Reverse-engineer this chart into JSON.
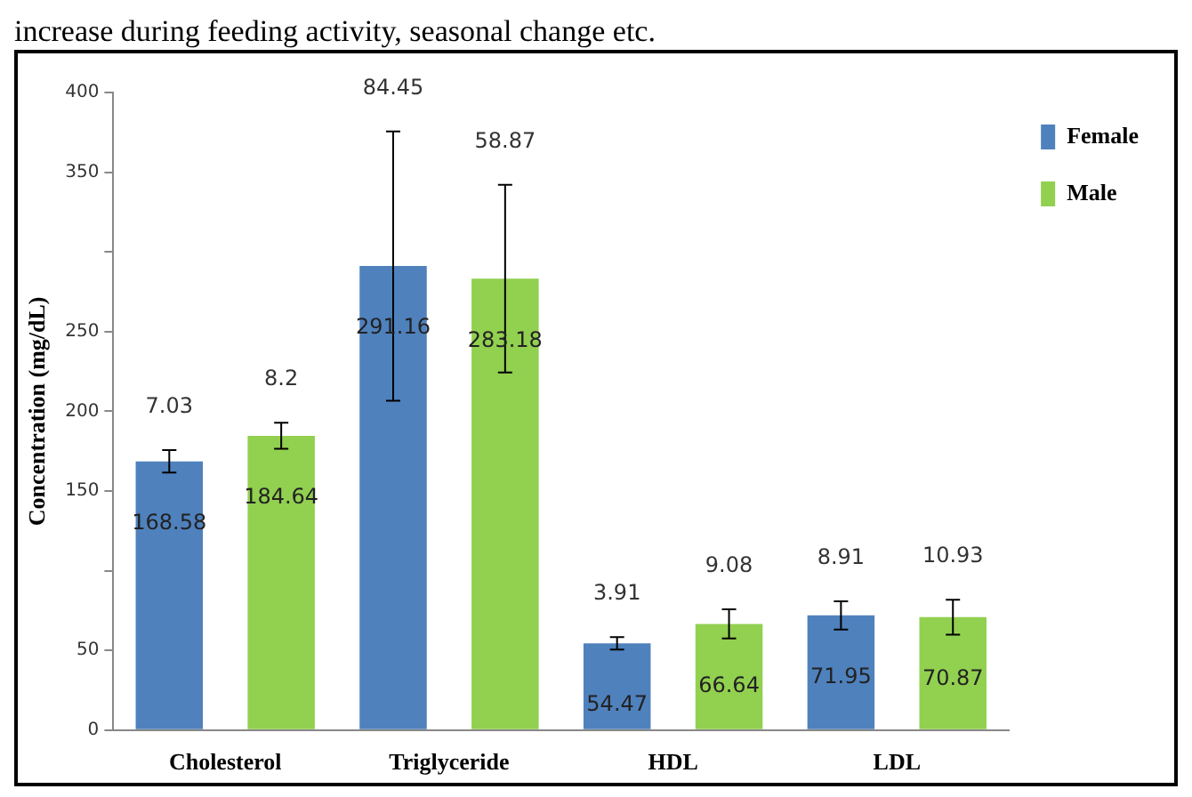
{
  "chart_data": {
    "type": "bar",
    "annotations": [
      "increase during feeding activity, seasonal change etc.",
      "7.03",
      "8.2",
      "84.45",
      "58.87",
      "3.91",
      "9.08",
      "8.91",
      "10.93"
    ],
    "ylabel": "Concentration (mg/dL)",
    "categories": [
      "Cholesterol",
      "Triglyceride",
      "HDL",
      "LDL"
    ],
    "series": [
      {
        "name": "Female",
        "color": "#4f81bd",
        "values": [
          168.58,
          291.16,
          54.47,
          71.95
        ],
        "errors": [
          7.03,
          84.45,
          3.91,
          8.91
        ]
      },
      {
        "name": "Male",
        "color": "#92d050",
        "values": [
          184.64,
          283.18,
          66.64,
          70.87
        ],
        "errors": [
          8.2,
          58.87,
          9.08,
          10.93
        ]
      }
    ],
    "ylim": [
      0,
      400
    ],
    "yticks": [
      0,
      50,
      {
        "value": 100,
        "label": null
      },
      150,
      200,
      250,
      {
        "value": 300,
        "label": null
      },
      350,
      400
    ],
    "grid": false,
    "legend": "right",
    "data_labels": true
  }
}
